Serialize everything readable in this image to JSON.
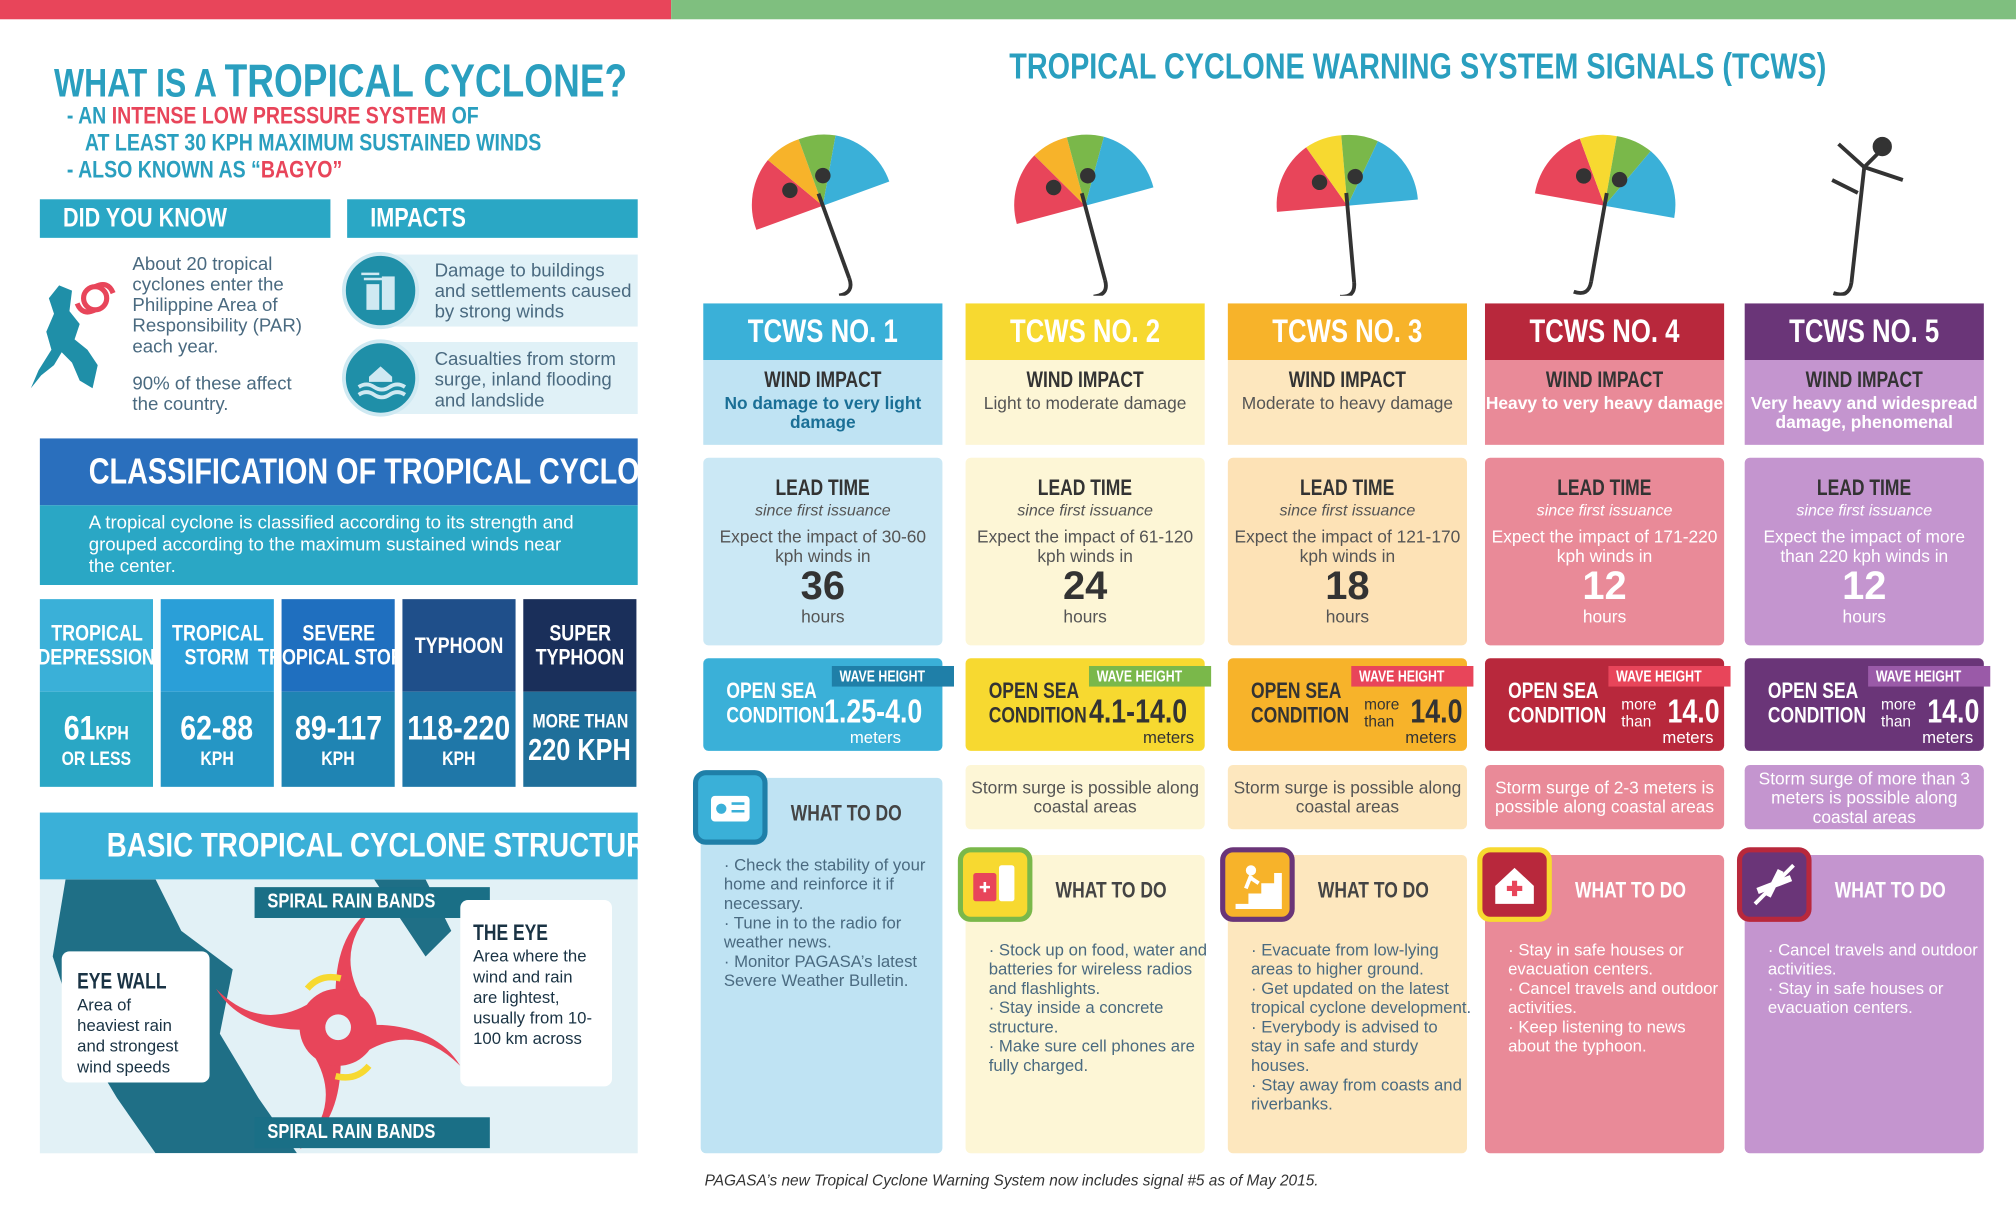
{
  "left": {
    "title_prefix": "WHAT IS A ",
    "title_main": "TROPICAL CYCLONE?",
    "bullet1_a": "- AN ",
    "bullet1_b": "INTENSE LOW PRESSURE SYSTEM",
    "bullet1_c": " OF",
    "bullet1_d": "AT LEAST 30 KPH MAXIMUM SUSTAINED WINDS",
    "bullet2_a": "- ALSO KNOWN AS “",
    "bullet2_b": "BAGYO",
    "bullet2_c": "”",
    "did_you_know": {
      "header": "DID YOU KNOW",
      "p1": "About 20 tropical cyclones enter the Philippine Area of Responsibility (PAR) each year.",
      "p2": "90% of these affect the country."
    },
    "impacts": {
      "header": "IMPACTS",
      "i1": "Damage to buildings and settlements caused by strong winds",
      "i2": "Casualties from storm surge, inland flooding and landslide"
    },
    "classification": {
      "header": "CLASSIFICATION  OF TROPICAL CYCLONES",
      "desc": "A tropical cyclone is classified according to its strength and grouped according to the maximum sustained winds near the center.",
      "cols": [
        {
          "l1": "TROPICAL",
          "l2": "DEPRESSION",
          "v1": "61",
          "v1u": "KPH",
          "v2": "OR LESS",
          "top": "#3ab0d8",
          "bot": "#2aa7c5"
        },
        {
          "l1": "TROPICAL",
          "l2": "STORM",
          "v1": "62-88",
          "v1u": "",
          "v2": "KPH",
          "top": "#2a9fd8",
          "bot": "#2596c5"
        },
        {
          "l1": "SEVERE",
          "l2": "TROPICAL STORM",
          "v1": "89-117",
          "v1u": "",
          "v2": "KPH",
          "top": "#1f6fbf",
          "bot": "#1f84b3"
        },
        {
          "l1": "TYPHOON",
          "l2": "",
          "v1": "118-220",
          "v1u": "",
          "v2": "KPH",
          "top": "#1f4f8a",
          "bot": "#1f77a8"
        },
        {
          "l1": "SUPER",
          "l2": "TYPHOON",
          "v1": "MORE THAN",
          "v1u": "",
          "v2": "220 KPH",
          "top": "#1a2f5a",
          "bot": "#1f6f9a"
        }
      ]
    },
    "structure": {
      "header": "BASIC TROPICAL CYCLONE STRUCTURE",
      "rain_top": "SPIRAL RAIN BANDS",
      "rain_bottom": "SPIRAL RAIN BANDS",
      "eye_title": "THE EYE",
      "eye_text": "Area where the wind and rain are lightest, usually from 10-100 km across",
      "wall_title": "EYE WALL",
      "wall_text": "Area of heaviest rain and strongest wind speeds"
    }
  },
  "right": {
    "title": "TROPICAL CYCLONE WARNING SYSTEM SIGNALS (TCWS)",
    "signals": [
      {
        "name": "TCWS NO. 1",
        "wind_t": "WIND IMPACT",
        "wind_d": "No damage to very light damage",
        "lead_t": "LEAD TIME",
        "lead_s": "since first issuance",
        "lead_e": "Expect the impact of 30-60 kph winds in",
        "lead_n": "36",
        "lead_h": "hours",
        "osc": "OPEN SEA CONDITION",
        "wh": "WAVE HEIGHT",
        "mt": "",
        "val": "1.25-4.0",
        "m": "meters",
        "surge": "",
        "wtd": "WHAT TO DO",
        "acts": [
          "Check the stability of your home and reinforce it if necessary.",
          "Tune in to the radio for weather news.",
          "Monitor PAGASA’s latest Severe Weather Bulletin."
        ],
        "c_hdr": "#3ab0d8",
        "c_light": "#bfe3f3",
        "c_lead": "#cbe8f5",
        "c_osc": "#3ab0d8",
        "c_wh": "#1f7fa8",
        "c_txt": "#1a6f96",
        "c_wtd": "#bfe3f3"
      },
      {
        "name": "TCWS NO. 2",
        "wind_t": "WIND IMPACT",
        "wind_d": "Light to moderate damage",
        "lead_t": "LEAD TIME",
        "lead_s": "since first issuance",
        "lead_e": "Expect the impact of 61-120 kph winds in",
        "lead_n": "24",
        "lead_h": "hours",
        "osc": "OPEN SEA CONDITION",
        "wh": "WAVE HEIGHT",
        "mt": "",
        "val": "4.1-14.0",
        "m": "meters",
        "surge": "Storm surge is possible along coastal areas",
        "wtd": "WHAT TO DO",
        "acts": [
          "Stock up on food, water and batteries for wireless radios and flashlights.",
          "Stay inside a concrete structure.",
          "Make sure cell phones are fully charged."
        ],
        "c_hdr": "#f7d930",
        "c_light": "#fdf6d6",
        "c_lead": "#fdf6d6",
        "c_osc": "#f7d930",
        "c_wh": "#7ab84a",
        "c_txt": "#555",
        "c_wtd": "#fdf6d6"
      },
      {
        "name": "TCWS NO. 3",
        "wind_t": "WIND IMPACT",
        "wind_d": "Moderate to heavy damage",
        "lead_t": "LEAD TIME",
        "lead_s": "since first issuance",
        "lead_e": "Expect the impact of 121-170 kph winds in",
        "lead_n": "18",
        "lead_h": "hours",
        "osc": "OPEN SEA CONDITION",
        "wh": "WAVE HEIGHT",
        "mt": "more than",
        "val": "14.0",
        "m": "meters",
        "surge": "Storm surge is possible along coastal areas",
        "wtd": "WHAT TO DO",
        "acts": [
          "Evacuate from low-lying areas to higher ground.",
          "Get updated on the latest tropical cyclone development.",
          "Everybody is advised to stay in safe and sturdy houses.",
          "Stay away from coasts and riverbanks."
        ],
        "c_hdr": "#f7b32a",
        "c_light": "#fde7be",
        "c_lead": "#fde2b6",
        "c_osc": "#f7b32a",
        "c_wh": "#e8455a",
        "c_txt": "#555",
        "c_wtd": "#fde7be"
      },
      {
        "name": "TCWS NO. 4",
        "wind_t": "WIND IMPACT",
        "wind_d": "Heavy to very heavy damage",
        "lead_t": "LEAD TIME",
        "lead_s": "since first issuance",
        "lead_e": "Expect the impact of 171-220 kph winds in",
        "lead_n": "12",
        "lead_h": "hours",
        "osc": "OPEN SEA CONDITION",
        "wh": "WAVE HEIGHT",
        "mt": "more than",
        "val": "14.0",
        "m": "meters",
        "surge": "Storm surge of 2-3 meters is possible along coastal areas",
        "wtd": "WHAT TO DO",
        "acts": [
          "Stay in safe houses or evacuation centers.",
          "Cancel travels and outdoor activities.",
          "Keep listening to news about the typhoon."
        ],
        "c_hdr": "#b8283c",
        "c_light": "#e98a98",
        "c_lead": "#e98a98",
        "c_osc": "#b8283c",
        "c_wh": "#e8455a",
        "c_txt": "#fff",
        "c_wtd": "#e98a98"
      },
      {
        "name": "TCWS NO. 5",
        "wind_t": "WIND IMPACT",
        "wind_d": "Very heavy and widespread damage, phenomenal",
        "lead_t": "LEAD TIME",
        "lead_s": "since first issuance",
        "lead_e": "Expect the impact of more than 220 kph winds in",
        "lead_n": "12",
        "lead_h": "hours",
        "osc": "OPEN SEA CONDITION",
        "wh": "WAVE HEIGHT",
        "mt": "more than",
        "val": "14.0",
        "m": "meters",
        "surge": "Storm surge of more than 3 meters is possible along coastal areas",
        "wtd": "WHAT TO DO",
        "acts": [
          "Cancel travels and outdoor activities.",
          "Stay in safe houses or evacuation centers."
        ],
        "c_hdr": "#6a3578",
        "c_light": "#c495cf",
        "c_lead": "#c495cf",
        "c_osc": "#6a3578",
        "c_wh": "#9a5aa8",
        "c_txt": "#fff",
        "c_wtd": "#c495cf"
      }
    ],
    "footnote": "PAGASA’s new Tropical Cyclone Warning System now includes signal #5 as of May 2015."
  }
}
